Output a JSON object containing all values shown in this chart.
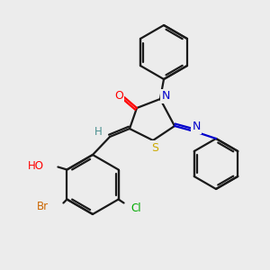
{
  "bg_color": "#ececec",
  "bond_color": "#1a1a1a",
  "colors": {
    "O": "#ff0000",
    "N": "#0000cc",
    "S": "#ccaa00",
    "Br": "#cc6600",
    "Cl": "#00aa00",
    "H": "#4a9090"
  }
}
